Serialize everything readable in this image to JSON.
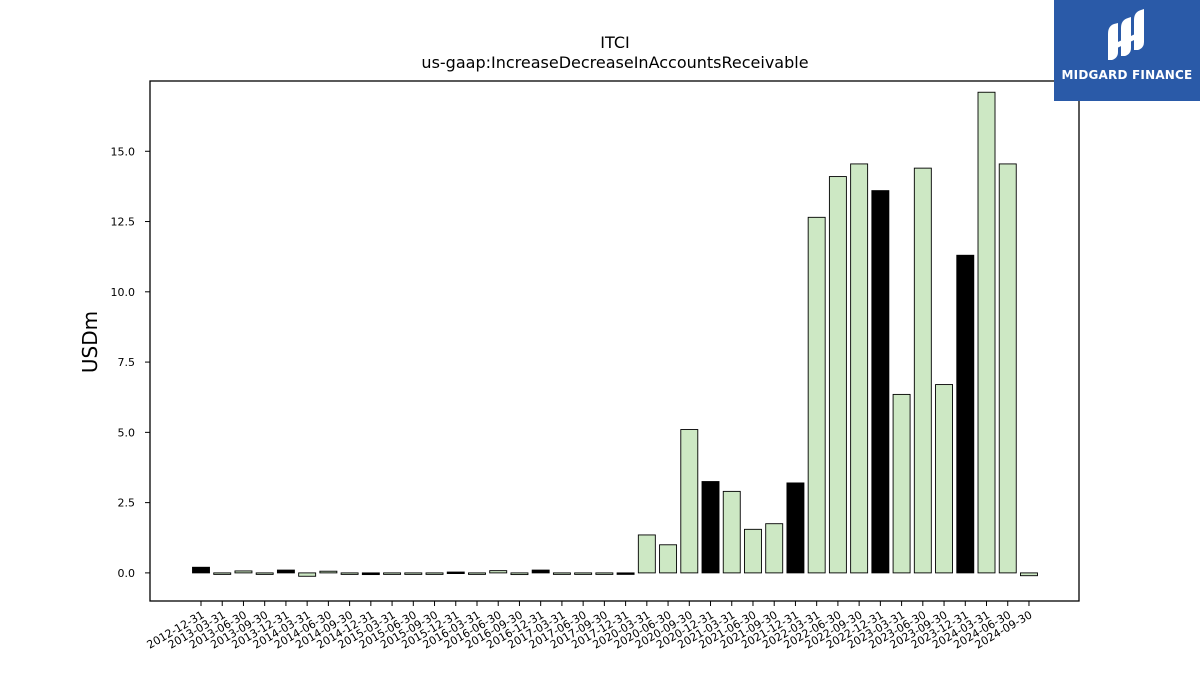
{
  "chart_data": {
    "type": "bar",
    "title": "ITCI",
    "subtitle": "us-gaap:IncreaseDecreaseInAccountsReceivable",
    "xlabel": "",
    "ylabel": "USDm",
    "ylim": [
      -1.0,
      17.5
    ],
    "yticks": [
      0.0,
      2.5,
      5.0,
      7.5,
      10.0,
      12.5,
      15.0
    ],
    "ytick_labels": [
      "0.0",
      "2.5",
      "5.0",
      "7.5",
      "10.0",
      "12.5",
      "15.0"
    ],
    "grid": false,
    "categories": [
      "2012-12-31",
      "2013-03-31",
      "2013-06-30",
      "2013-09-30",
      "2013-12-31",
      "2014-03-31",
      "2014-06-30",
      "2014-09-30",
      "2014-12-31",
      "2015-03-31",
      "2015-06-30",
      "2015-09-30",
      "2015-12-31",
      "2016-03-31",
      "2016-06-30",
      "2016-09-30",
      "2016-12-31",
      "2017-03-31",
      "2017-06-30",
      "2017-09-30",
      "2017-12-31",
      "2020-03-31",
      "2020-06-30",
      "2020-09-30",
      "2020-12-31",
      "2021-03-31",
      "2021-06-30",
      "2021-09-30",
      "2021-12-31",
      "2022-03-31",
      "2022-06-30",
      "2022-09-30",
      "2022-12-31",
      "2023-03-31",
      "2023-06-30",
      "2023-09-30",
      "2023-12-31",
      "2024-03-31",
      "2024-06-30",
      "2024-09-30"
    ],
    "values": [
      0.2,
      -0.05,
      0.07,
      -0.02,
      0.1,
      -0.12,
      0.06,
      -0.05,
      -0.06,
      -0.04,
      -0.02,
      -0.01,
      0.03,
      -0.03,
      0.08,
      -0.06,
      0.1,
      -0.01,
      -0.01,
      -0.03,
      -0.01,
      1.35,
      1.0,
      5.1,
      3.25,
      2.9,
      1.55,
      1.75,
      3.2,
      12.65,
      14.1,
      14.55,
      13.6,
      6.35,
      14.4,
      6.7,
      11.3,
      17.1,
      14.55,
      -0.1
    ],
    "bar_colors": [
      "#000000",
      "#cde8c4",
      "#cde8c4",
      "#cde8c4",
      "#000000",
      "#cde8c4",
      "#cde8c4",
      "#cde8c4",
      "#000000",
      "#cde8c4",
      "#cde8c4",
      "#cde8c4",
      "#000000",
      "#cde8c4",
      "#cde8c4",
      "#cde8c4",
      "#000000",
      "#cde8c4",
      "#cde8c4",
      "#cde8c4",
      "#000000",
      "#cde8c4",
      "#cde8c4",
      "#cde8c4",
      "#000000",
      "#cde8c4",
      "#cde8c4",
      "#cde8c4",
      "#000000",
      "#cde8c4",
      "#cde8c4",
      "#cde8c4",
      "#000000",
      "#cde8c4",
      "#cde8c4",
      "#cde8c4",
      "#000000",
      "#cde8c4",
      "#cde8c4",
      "#cde8c4"
    ]
  },
  "logo": {
    "text": "MIDGARD FINANCE",
    "background": "#2a5aa8"
  }
}
